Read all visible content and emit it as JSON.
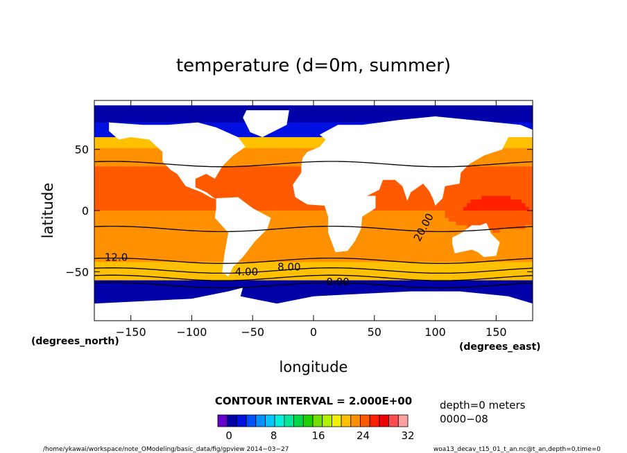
{
  "chart_data": {
    "type": "heatmap",
    "title": "temperature (d=0m, summer)",
    "xlabel": "longitude",
    "ylabel": "latitude",
    "x_units": "(degrees_east)",
    "y_units": "(degrees_north)",
    "xlim": [
      -180,
      180
    ],
    "ylim": [
      -90,
      90
    ],
    "x_ticks": [
      {
        "value": -150,
        "label": "−150"
      },
      {
        "value": -100,
        "label": "−100"
      },
      {
        "value": -50,
        "label": "−50"
      },
      {
        "value": 0,
        "label": "0"
      },
      {
        "value": 50,
        "label": "50"
      },
      {
        "value": 100,
        "label": "100"
      },
      {
        "value": 150,
        "label": "150"
      }
    ],
    "y_ticks": [
      {
        "value": 50,
        "label": "50"
      },
      {
        "value": 0,
        "label": "0"
      },
      {
        "value": -50,
        "label": "−50"
      }
    ],
    "contour_labels": [
      {
        "text": "20.00",
        "lon": 93,
        "lat": -15
      },
      {
        "text": "12.0",
        "lon": -162,
        "lat": -41
      },
      {
        "text": "4.00",
        "lon": -55,
        "lat": -53
      },
      {
        "text": "8.00",
        "lon": -20,
        "lat": -49
      },
      {
        "text": "0.00",
        "lon": 20,
        "lat": -61
      }
    ],
    "contour_interval": "CONTOUR INTERVAL = 2.000E+00",
    "colorbar": {
      "min": -2,
      "max": 32,
      "step": 2,
      "tick_labels": [
        {
          "value": 0,
          "label": "0"
        },
        {
          "value": 8,
          "label": "8"
        },
        {
          "value": 16,
          "label": "16"
        },
        {
          "value": 24,
          "label": "24"
        },
        {
          "value": 32,
          "label": "32"
        }
      ],
      "colors": [
        "#6600cc",
        "#0000a8",
        "#0010e0",
        "#0050ff",
        "#0090ff",
        "#00c8ff",
        "#00f0e0",
        "#00e89a",
        "#00d84a",
        "#20d000",
        "#70e000",
        "#b0f000",
        "#f0f000",
        "#ffc000",
        "#ff9000",
        "#ff5a00",
        "#ff2000",
        "#f00000",
        "#ff4d4d",
        "#ffa0a0"
      ]
    },
    "info": {
      "depth": "depth=0 meters",
      "time": "0000−08"
    },
    "footer": {
      "path": "/home/ykawai/workspace/note_OModeling/basic_data/fig/gpview  2014−03−27",
      "dataset": "woa13_decav_t15_01_t_an.nc@t_an,depth=0,time=0"
    }
  }
}
